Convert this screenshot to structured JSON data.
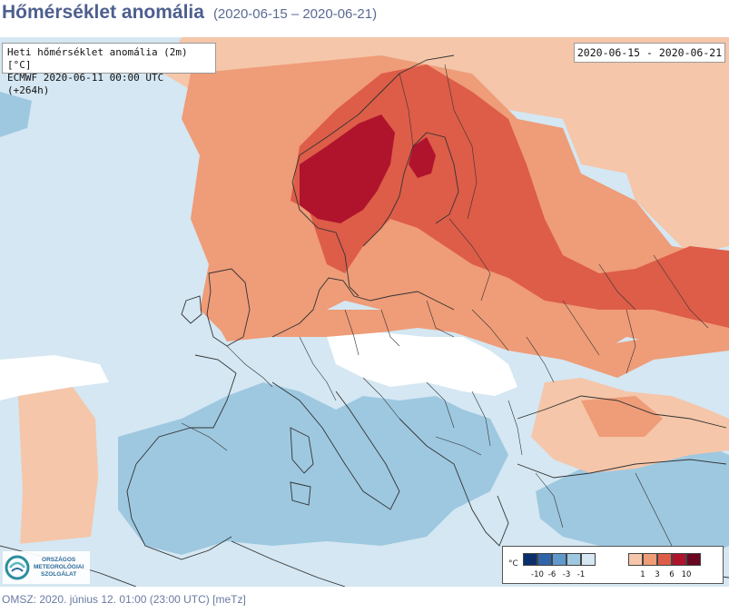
{
  "header": {
    "title": "Hőmérséklet anomália",
    "period": "(2020-06-15 – 2020-06-21)"
  },
  "info": {
    "line1": "Heti hőmérséklet anomália (2m) [°C]",
    "line2": "ECMWF 2020-06-11 00:00 UTC (+264h)"
  },
  "date_box": "2020-06-15 - 2020-06-21",
  "legend": {
    "unit": "°C",
    "cold_colors": [
      "#0b2f6b",
      "#2f64a8",
      "#5f99cb",
      "#9ec8e0",
      "#d4e7f2"
    ],
    "cold_labels": [
      "-10",
      "-6",
      "-3",
      "-1"
    ],
    "warm_colors": [
      "#f5c6a9",
      "#ef9c78",
      "#dd5d48",
      "#b0142d",
      "#6a0721"
    ],
    "warm_labels": [
      "1",
      "3",
      "6",
      "10"
    ]
  },
  "logo": {
    "line1": "ORSZÁGOS",
    "line2": "METEOROLÓGIAI",
    "line3": "SZOLGÁLAT"
  },
  "footer": "OMSZ: 2020. június 12. 01:00 (23:00  UTC)  [meTz]"
}
